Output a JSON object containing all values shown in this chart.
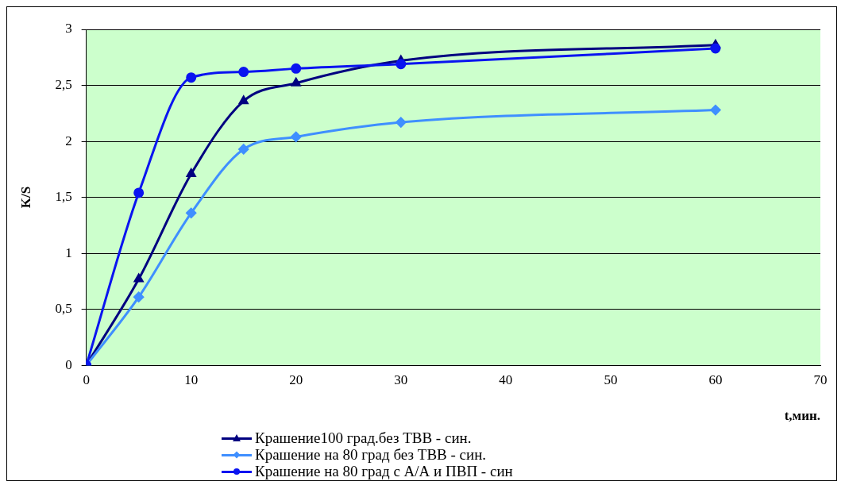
{
  "chart_data": {
    "type": "line",
    "x": [
      0,
      5,
      10,
      15,
      20,
      30,
      60
    ],
    "series": [
      {
        "name": "Крашение100 град.без ТВВ - син.",
        "color": "#000080",
        "marker": "triangle",
        "values": [
          0,
          0.77,
          1.71,
          2.36,
          2.52,
          2.72,
          2.86
        ]
      },
      {
        "name": "Крашение на 80 град без ТВВ - син.",
        "color": "#3f8fff",
        "marker": "diamond",
        "values": [
          0,
          0.61,
          1.36,
          1.93,
          2.04,
          2.17,
          2.28
        ]
      },
      {
        "name": "Крашение на 80 град с А/А и ПВП - син",
        "color": "#0a14f0",
        "marker": "circle",
        "values": [
          0,
          1.54,
          2.57,
          2.62,
          2.65,
          2.69,
          2.83
        ]
      }
    ],
    "xlabel": "t,мин.",
    "ylabel": "K/S",
    "xlim": [
      0,
      70
    ],
    "xticks": [
      0,
      10,
      20,
      30,
      40,
      50,
      60,
      70
    ],
    "ylim": [
      0,
      3
    ],
    "yticks": [
      0,
      {
        "value": 0.5,
        "label": "0,5"
      },
      1,
      {
        "value": 1.5,
        "label": "1,5"
      },
      2,
      {
        "value": 2.5,
        "label": "2,5"
      },
      3
    ],
    "grid": "y",
    "legend": "bottom left"
  }
}
